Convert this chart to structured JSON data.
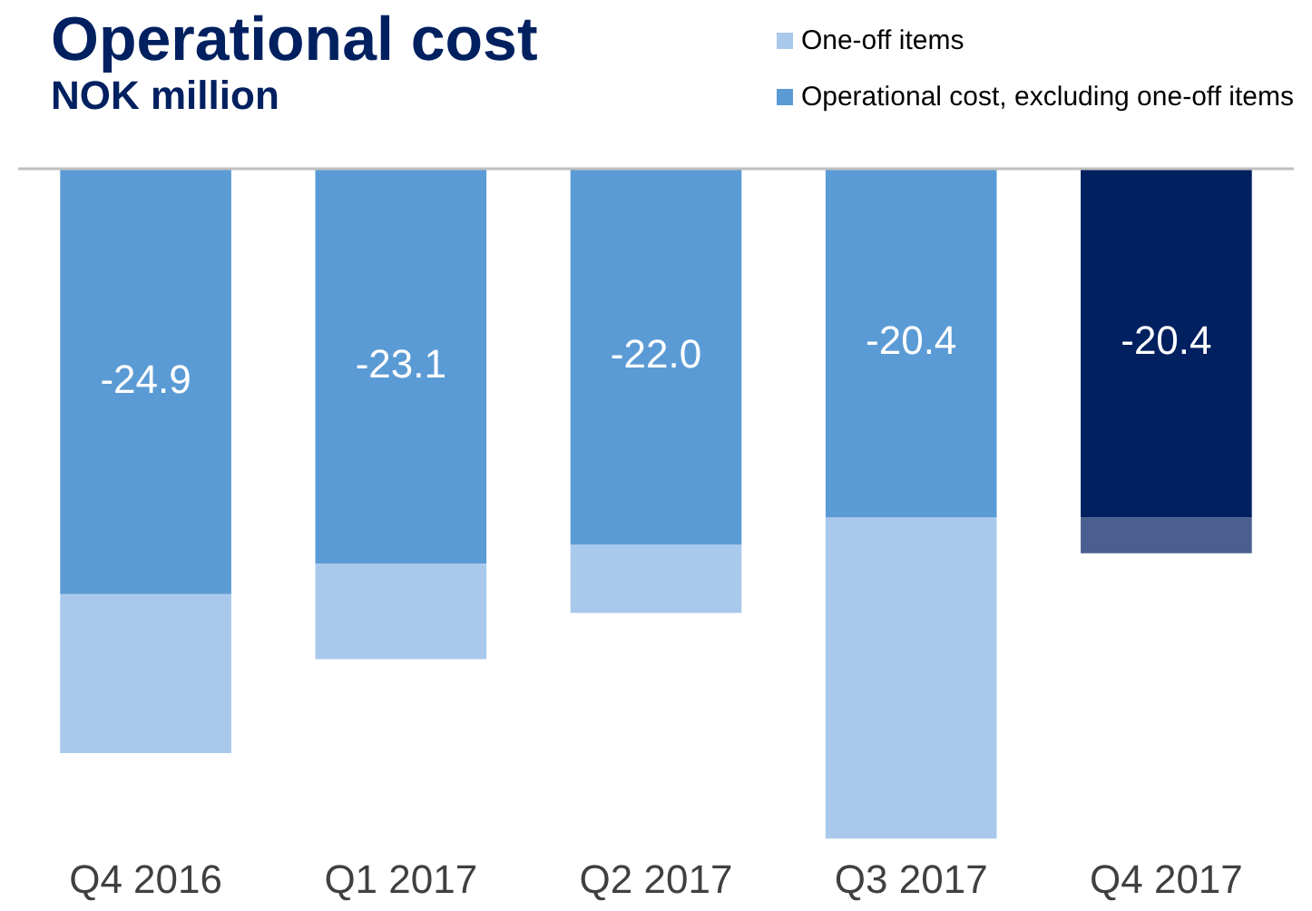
{
  "chart_data": {
    "type": "bar",
    "title": "Operational cost",
    "subtitle": "NOK million",
    "stacked": true,
    "legend": "top right",
    "tick_labels": "x",
    "categories": [
      "Q4 2016",
      "Q1 2017",
      "Q2 2017",
      "Q3 2017",
      "Q4 2017"
    ],
    "series": [
      {
        "name": "Operational cost, excluding one-off items",
        "color": "#5b9bd5",
        "colors": [
          "#5b9bd5",
          "#5b9bd5",
          "#5b9bd5",
          "#5b9bd5",
          "#002060"
        ],
        "values": [
          -24.9,
          -23.1,
          -22.0,
          -20.4,
          -20.4
        ],
        "value_labels": [
          "-24.9",
          "-23.1",
          "-22.0",
          "-20.4",
          "-20.4"
        ]
      },
      {
        "name": "One-off items",
        "color": "#a9c9ec",
        "colors": [
          "#a9c9ec",
          "#a9c9ec",
          "#a9c9ec",
          "#a9c9ec",
          "#4a5f8f"
        ],
        "values": [
          -9.3,
          -5.6,
          -4.0,
          -18.8,
          -2.1
        ]
      }
    ]
  }
}
